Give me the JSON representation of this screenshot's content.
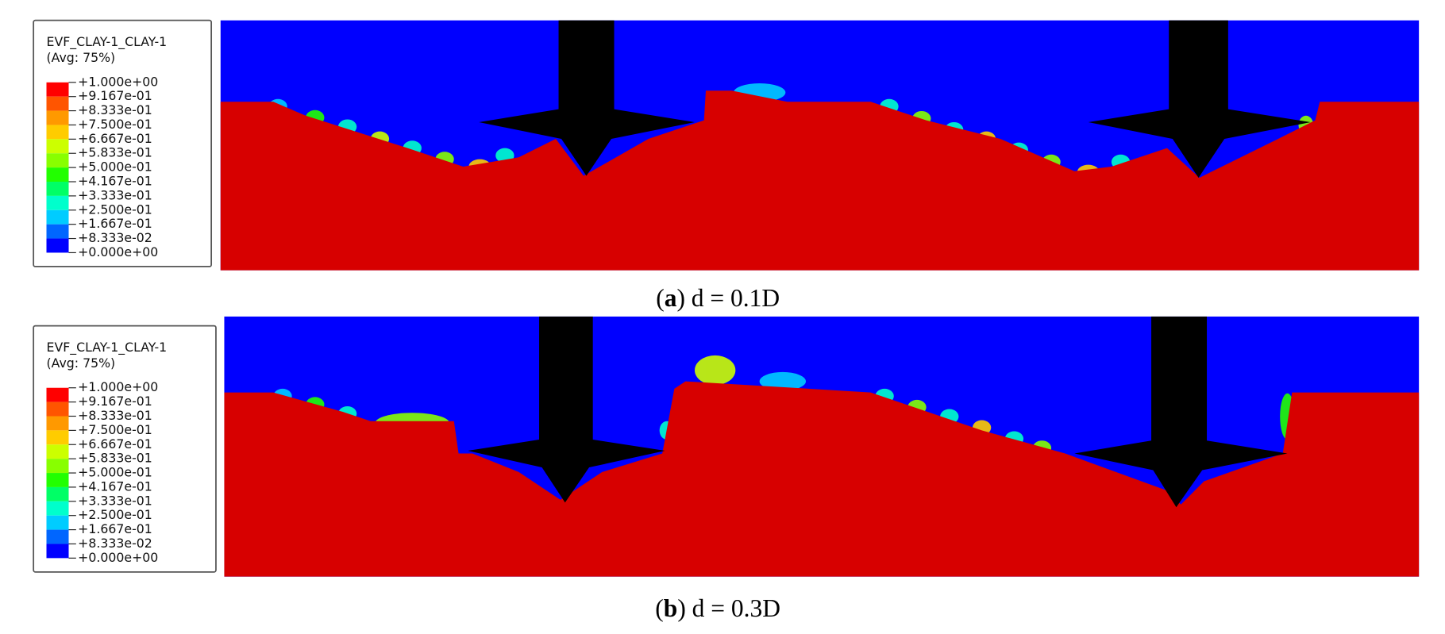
{
  "legend_colors": [
    "#ff0000",
    "#ff5500",
    "#ff9900",
    "#ffcc00",
    "#ccff00",
    "#88ff00",
    "#22ff00",
    "#00ff66",
    "#00ffcc",
    "#00ccff",
    "#0066ff",
    "#0000ff"
  ],
  "panels": [
    {
      "legend": {
        "title": "EVF_CLAY-1_CLAY-1",
        "subtitle": "(Avg: 75%)",
        "labels": [
          "+1.000e+00",
          "+9.167e-01",
          "+8.333e-01",
          "+7.500e-01",
          "+6.667e-01",
          "+5.833e-01",
          "+5.000e-01",
          "+4.167e-01",
          "+3.333e-01",
          "+2.500e-01",
          "+1.667e-01",
          "+8.333e-02",
          "+0.000e+00"
        ]
      },
      "caption": {
        "open": "(",
        "letter": "a",
        "rest": ") d = 0.1D"
      }
    },
    {
      "legend": {
        "title": "EVF_CLAY-1_CLAY-1",
        "subtitle": "(Avg: 75%)",
        "labels": [
          "+1.000e+00",
          "+9.167e-01",
          "+8.333e-01",
          "+7.500e-01",
          "+6.667e-01",
          "+5.833e-01",
          "+5.000e-01",
          "+4.167e-01",
          "+3.333e-01",
          "+2.500e-01",
          "+1.667e-01",
          "+8.333e-02",
          "+0.000e+00"
        ]
      },
      "caption": {
        "open": "(",
        "letter": "b",
        "rest": ") d = 0.3D"
      }
    }
  ]
}
